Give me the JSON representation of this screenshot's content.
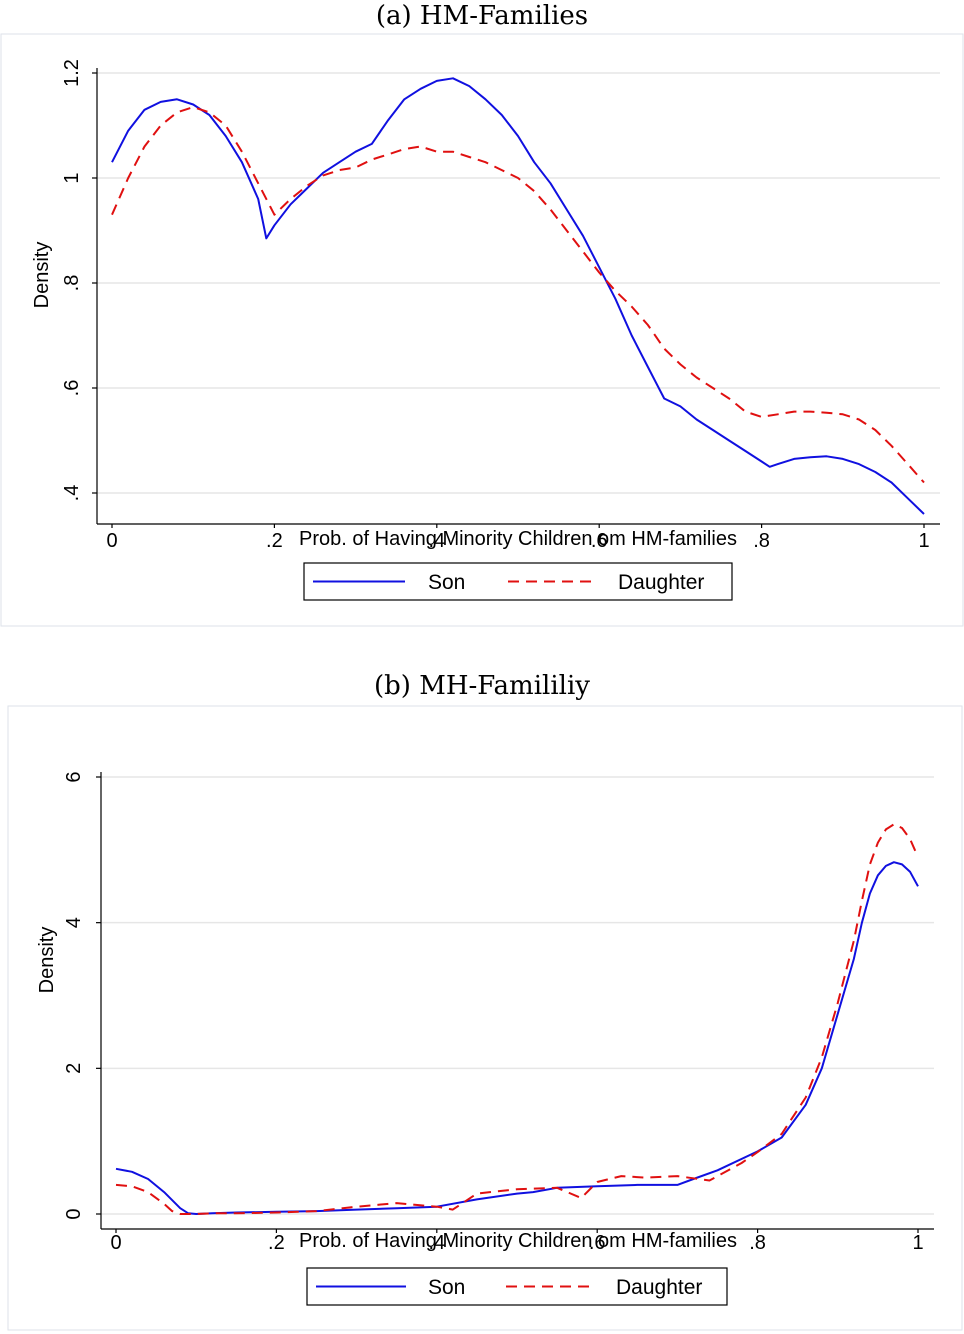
{
  "panels": [
    {
      "caption": "(a) HM-Families"
    },
    {
      "caption": "(b) MH-Famililiy"
    }
  ],
  "colors": {
    "son": "#1010e0",
    "daughter": "#e01010",
    "grid": "#e6e6e6"
  },
  "chart_data": [
    {
      "type": "line",
      "title": "",
      "xlabel": "Prob. of Having Minority Children om HM-families",
      "ylabel": "Density",
      "xlim": [
        0,
        1
      ],
      "ylim": [
        0.4,
        1.2
      ],
      "x_ticks": [
        0,
        0.2,
        0.4,
        0.6,
        0.8,
        1
      ],
      "x_tick_labels": [
        "0",
        ".2",
        ".4",
        ".6",
        ".8",
        "1"
      ],
      "y_ticks": [
        0.4,
        0.6,
        0.8,
        1.0,
        1.2
      ],
      "y_tick_labels": [
        ".4",
        ".6",
        ".8",
        "1",
        "1.2"
      ],
      "grid": true,
      "legend_position": "bottom-center",
      "series": [
        {
          "name": "Son",
          "style": "solid",
          "x": [
            0,
            0.02,
            0.04,
            0.06,
            0.08,
            0.1,
            0.12,
            0.14,
            0.16,
            0.18,
            0.19,
            0.2,
            0.22,
            0.24,
            0.26,
            0.28,
            0.3,
            0.32,
            0.34,
            0.36,
            0.38,
            0.4,
            0.42,
            0.44,
            0.46,
            0.48,
            0.5,
            0.52,
            0.54,
            0.56,
            0.58,
            0.6,
            0.62,
            0.64,
            0.66,
            0.68,
            0.7,
            0.72,
            0.74,
            0.76,
            0.78,
            0.8,
            0.81,
            0.82,
            0.84,
            0.86,
            0.88,
            0.9,
            0.92,
            0.94,
            0.96,
            0.98,
            1
          ],
          "y": [
            1.03,
            1.09,
            1.13,
            1.145,
            1.15,
            1.14,
            1.12,
            1.08,
            1.03,
            0.96,
            0.885,
            0.91,
            0.95,
            0.98,
            1.01,
            1.03,
            1.05,
            1.065,
            1.11,
            1.15,
            1.17,
            1.185,
            1.19,
            1.175,
            1.15,
            1.12,
            1.08,
            1.03,
            0.99,
            0.94,
            0.89,
            0.83,
            0.77,
            0.7,
            0.64,
            0.58,
            0.565,
            0.54,
            0.52,
            0.5,
            0.48,
            0.46,
            0.45,
            0.455,
            0.465,
            0.468,
            0.47,
            0.465,
            0.455,
            0.44,
            0.42,
            0.39,
            0.36
          ]
        },
        {
          "name": "Daughter",
          "style": "dashed",
          "x": [
            0,
            0.02,
            0.04,
            0.06,
            0.08,
            0.1,
            0.12,
            0.14,
            0.16,
            0.18,
            0.2,
            0.22,
            0.24,
            0.26,
            0.28,
            0.3,
            0.32,
            0.34,
            0.36,
            0.38,
            0.4,
            0.42,
            0.44,
            0.46,
            0.48,
            0.5,
            0.52,
            0.54,
            0.56,
            0.58,
            0.6,
            0.62,
            0.64,
            0.66,
            0.68,
            0.7,
            0.72,
            0.74,
            0.76,
            0.78,
            0.8,
            0.82,
            0.84,
            0.86,
            0.88,
            0.9,
            0.92,
            0.94,
            0.96,
            0.98,
            1
          ],
          "y": [
            0.93,
            1.0,
            1.06,
            1.1,
            1.125,
            1.135,
            1.125,
            1.1,
            1.05,
            0.99,
            0.93,
            0.96,
            0.985,
            1.005,
            1.015,
            1.02,
            1.035,
            1.045,
            1.055,
            1.06,
            1.05,
            1.05,
            1.04,
            1.03,
            1.015,
            1.0,
            0.975,
            0.94,
            0.9,
            0.86,
            0.82,
            0.785,
            0.755,
            0.72,
            0.675,
            0.645,
            0.62,
            0.6,
            0.58,
            0.555,
            0.545,
            0.55,
            0.555,
            0.555,
            0.553,
            0.55,
            0.54,
            0.52,
            0.49,
            0.455,
            0.42
          ]
        }
      ]
    },
    {
      "type": "line",
      "title": "",
      "xlabel": "Prob. of Having Minority Children om HM-families",
      "ylabel": "Density",
      "xlim": [
        0,
        1
      ],
      "ylim": [
        0,
        6
      ],
      "x_ticks": [
        0,
        0.2,
        0.4,
        0.6,
        0.8,
        1
      ],
      "x_tick_labels": [
        "0",
        ".2",
        ".4",
        ".6",
        ".8",
        "1"
      ],
      "y_ticks": [
        0,
        2,
        4,
        6
      ],
      "y_tick_labels": [
        "0",
        "2",
        "4",
        "6"
      ],
      "grid": true,
      "legend_position": "bottom-center",
      "series": [
        {
          "name": "Son",
          "style": "solid",
          "x": [
            0,
            0.02,
            0.04,
            0.06,
            0.08,
            0.09,
            0.1,
            0.12,
            0.15,
            0.2,
            0.25,
            0.3,
            0.35,
            0.4,
            0.45,
            0.5,
            0.52,
            0.55,
            0.6,
            0.65,
            0.7,
            0.72,
            0.75,
            0.8,
            0.83,
            0.86,
            0.88,
            0.9,
            0.92,
            0.93,
            0.94,
            0.95,
            0.96,
            0.97,
            0.98,
            0.99,
            1
          ],
          "y": [
            0.62,
            0.58,
            0.48,
            0.3,
            0.08,
            0.01,
            0.0,
            0.01,
            0.02,
            0.03,
            0.04,
            0.06,
            0.08,
            0.1,
            0.2,
            0.28,
            0.3,
            0.36,
            0.38,
            0.4,
            0.4,
            0.48,
            0.6,
            0.86,
            1.05,
            1.5,
            2.0,
            2.75,
            3.5,
            4.0,
            4.4,
            4.65,
            4.78,
            4.83,
            4.8,
            4.7,
            4.5
          ]
        },
        {
          "name": "Daughter",
          "style": "dashed",
          "x": [
            0,
            0.02,
            0.04,
            0.06,
            0.07,
            0.08,
            0.1,
            0.12,
            0.15,
            0.2,
            0.25,
            0.3,
            0.35,
            0.4,
            0.42,
            0.45,
            0.5,
            0.55,
            0.58,
            0.6,
            0.63,
            0.66,
            0.7,
            0.74,
            0.78,
            0.8,
            0.83,
            0.86,
            0.88,
            0.9,
            0.92,
            0.93,
            0.94,
            0.95,
            0.96,
            0.97,
            0.98,
            0.99,
            1
          ],
          "y": [
            0.4,
            0.38,
            0.3,
            0.14,
            0.04,
            0.0,
            0.0,
            0.01,
            0.01,
            0.02,
            0.04,
            0.1,
            0.15,
            0.1,
            0.06,
            0.28,
            0.34,
            0.36,
            0.22,
            0.44,
            0.52,
            0.5,
            0.52,
            0.46,
            0.7,
            0.85,
            1.1,
            1.6,
            2.15,
            2.9,
            3.75,
            4.3,
            4.8,
            5.1,
            5.28,
            5.35,
            5.3,
            5.15,
            4.9
          ]
        }
      ]
    }
  ]
}
